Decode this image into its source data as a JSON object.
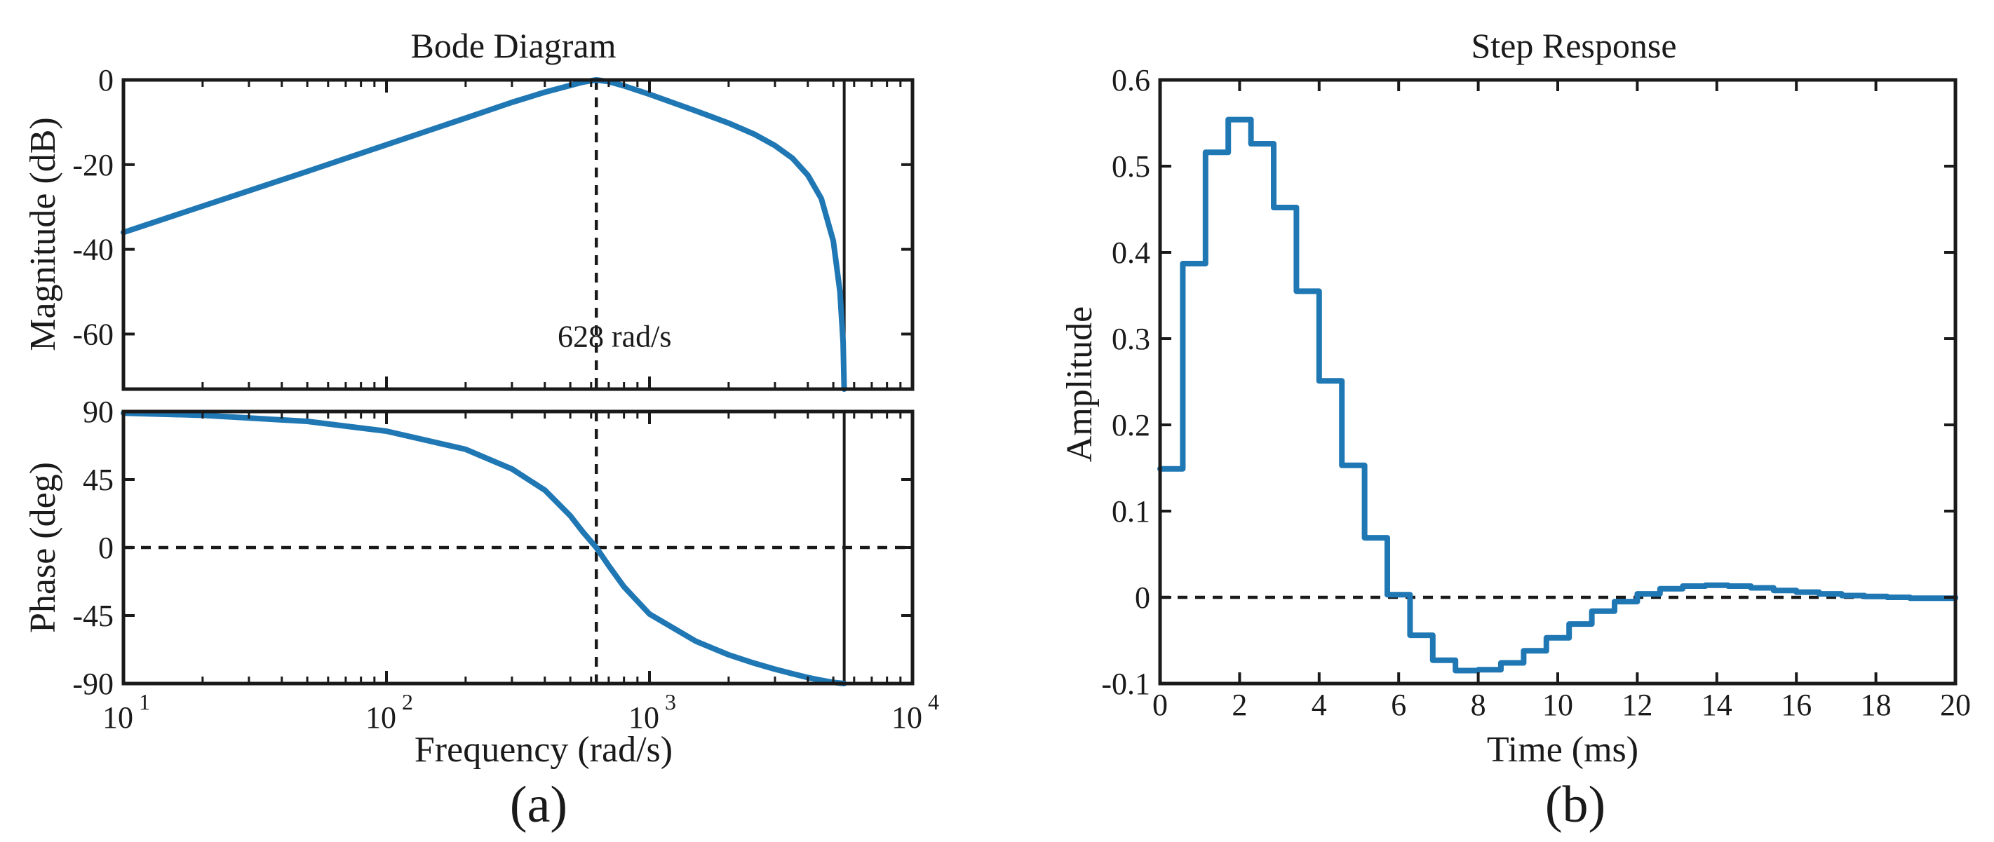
{
  "chart_data": [
    {
      "id": "bode",
      "type": "line",
      "title": "Bode Diagram",
      "panel_label": "(a)",
      "xlabel": "Frequency  (rad/s)",
      "xscale": "log",
      "xlim": [
        10,
        10000
      ],
      "x_tick_labels": [
        {
          "value": 10,
          "base": "10",
          "exp": "1"
        },
        {
          "value": 100,
          "base": "10",
          "exp": "2"
        },
        {
          "value": 1000,
          "base": "10",
          "exp": "3"
        },
        {
          "value": 10000,
          "base": "10",
          "exp": "4"
        }
      ],
      "series_color": "#1f77b4",
      "nyquist_frequency": 5500,
      "center_frequency": 628,
      "magnitude": {
        "ylabel": "Magnitude (dB)",
        "ylim": [
          -73,
          0
        ],
        "yticks": [
          0,
          -20,
          -40,
          -60
        ],
        "ytick_labels": [
          "0",
          "-20",
          "-40",
          "-60"
        ],
        "annotation": "628 rad/s",
        "points": [
          [
            10,
            -36
          ],
          [
            20,
            -29.8
          ],
          [
            50,
            -21.6
          ],
          [
            100,
            -15.3
          ],
          [
            200,
            -9
          ],
          [
            300,
            -5.3
          ],
          [
            400,
            -2.9
          ],
          [
            500,
            -1.3
          ],
          [
            560,
            -0.5
          ],
          [
            628,
            0
          ],
          [
            700,
            -0.4
          ],
          [
            800,
            -1.4
          ],
          [
            1000,
            -3.4
          ],
          [
            1500,
            -7.3
          ],
          [
            2000,
            -10.2
          ],
          [
            2500,
            -12.8
          ],
          [
            3000,
            -15.5
          ],
          [
            3500,
            -18.5
          ],
          [
            4000,
            -22.5
          ],
          [
            4500,
            -28
          ],
          [
            5000,
            -38
          ],
          [
            5300,
            -50
          ],
          [
            5450,
            -62
          ],
          [
            5500,
            -73
          ]
        ]
      },
      "phase": {
        "ylabel": "Phase (deg)",
        "ylim": [
          -90,
          90
        ],
        "yticks": [
          90,
          45,
          0,
          -45,
          -90
        ],
        "ytick_labels": [
          "90",
          "45",
          "0",
          "-45",
          "-90"
        ],
        "points": [
          [
            10,
            89
          ],
          [
            20,
            87.5
          ],
          [
            50,
            83.5
          ],
          [
            100,
            77
          ],
          [
            200,
            65
          ],
          [
            300,
            52
          ],
          [
            400,
            38
          ],
          [
            500,
            21
          ],
          [
            560,
            10
          ],
          [
            628,
            0
          ],
          [
            700,
            -12
          ],
          [
            800,
            -26
          ],
          [
            1000,
            -44
          ],
          [
            1500,
            -62
          ],
          [
            2000,
            -71
          ],
          [
            2500,
            -76.5
          ],
          [
            3000,
            -80.5
          ],
          [
            3500,
            -83.5
          ],
          [
            4000,
            -86
          ],
          [
            4500,
            -87.8
          ],
          [
            5000,
            -89.2
          ],
          [
            5500,
            -90
          ]
        ]
      }
    },
    {
      "id": "step",
      "type": "line",
      "step": true,
      "title": "Step Response",
      "panel_label": "(b)",
      "xlabel": "Time (ms)",
      "ylabel": "Amplitude",
      "xlim": [
        0,
        20
      ],
      "ylim": [
        -0.1,
        0.6
      ],
      "xticks": [
        0,
        2,
        4,
        6,
        8,
        10,
        12,
        14,
        16,
        18,
        20
      ],
      "xtick_labels": [
        "0",
        "2",
        "4",
        "6",
        "8",
        "10",
        "12",
        "14",
        "16",
        "18",
        "20"
      ],
      "yticks": [
        -0.1,
        0,
        0.1,
        0.2,
        0.3,
        0.4,
        0.5,
        0.6
      ],
      "ytick_labels": [
        "-0.1",
        "0",
        "0.1",
        "0.2",
        "0.3",
        "0.4",
        "0.5",
        "0.6"
      ],
      "sample_period_ms": 0.5714,
      "values": [
        0.149,
        0.387,
        0.516,
        0.554,
        0.526,
        0.452,
        0.355,
        0.251,
        0.153,
        0.069,
        0.003,
        -0.044,
        -0.073,
        -0.085,
        -0.084,
        -0.076,
        -0.062,
        -0.047,
        -0.031,
        -0.016,
        -0.005,
        0.004,
        0.01,
        0.013,
        0.014,
        0.013,
        0.011,
        0.008,
        0.006,
        0.004,
        0.002,
        0.001,
        0.0,
        -0.001,
        -0.001,
        0.0
      ],
      "series_color": "#1f77b4"
    }
  ]
}
